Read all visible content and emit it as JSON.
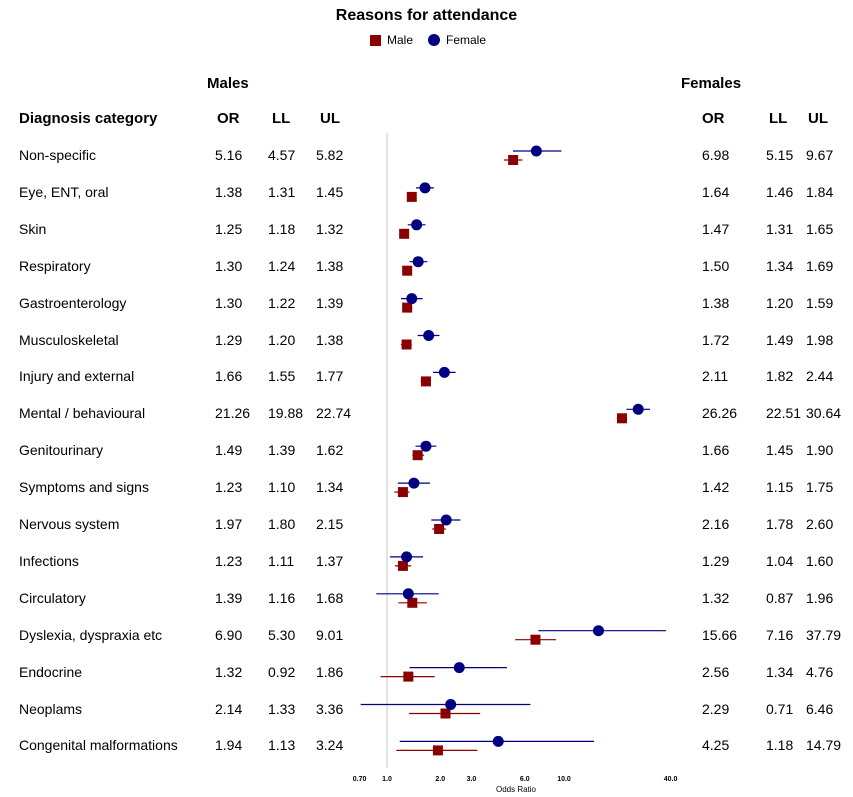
{
  "chart_data": {
    "type": "forest",
    "title": "Reasons for attendance",
    "legend": {
      "placement": "top-center",
      "items": [
        {
          "name": "Male",
          "color": "#8b0000",
          "marker": "square"
        },
        {
          "name": "Female",
          "color": "#000080",
          "marker": "circle"
        }
      ]
    },
    "group_headers": {
      "males": "Males",
      "females": "Females"
    },
    "column_headers": {
      "category": "Diagnosis category",
      "or": "OR",
      "ll": "LL",
      "ul": "UL"
    },
    "xlabel": "Odds Ratio",
    "x_scale": "log",
    "xlim": [
      0.7,
      40
    ],
    "x_ticks": [
      "0.70",
      "1.0",
      "2.0",
      "3.0",
      "6.0",
      "10.0",
      "40.0"
    ],
    "x_tick_values": [
      0.7,
      1.0,
      2.0,
      3.0,
      6.0,
      10.0,
      40.0
    ],
    "reference_line": 1.0,
    "categories": [
      "Non-specific",
      "Eye, ENT, oral",
      "Skin",
      "Respiratory",
      "Gastroenterology",
      "Musculoskeletal",
      "Injury and external",
      "Mental / behavioural",
      "Genitourinary",
      "Symptoms and signs",
      "Nervous system",
      "Infections",
      "Circulatory",
      "Dyslexia, dyspraxia etc",
      "Endocrine",
      "Neoplams",
      "Congenital malformations"
    ],
    "series": [
      {
        "name": "Male",
        "or": [
          "5.16",
          "1.38",
          "1.25",
          "1.30",
          "1.30",
          "1.29",
          "1.66",
          "21.26",
          "1.49",
          "1.23",
          "1.97",
          "1.23",
          "1.39",
          "6.90",
          "1.32",
          "2.14",
          "1.94"
        ],
        "ll": [
          "4.57",
          "1.31",
          "1.18",
          "1.24",
          "1.22",
          "1.20",
          "1.55",
          "19.88",
          "1.39",
          "1.10",
          "1.80",
          "1.11",
          "1.16",
          "5.30",
          "0.92",
          "1.33",
          "1.13"
        ],
        "ul": [
          "5.82",
          "1.45",
          "1.32",
          "1.38",
          "1.39",
          "1.38",
          "1.77",
          "22.74",
          "1.62",
          "1.34",
          "2.15",
          "1.37",
          "1.68",
          "9.01",
          "1.86",
          "3.36",
          "3.24"
        ]
      },
      {
        "name": "Female",
        "or": [
          "6.98",
          "1.64",
          "1.47",
          "1.50",
          "1.38",
          "1.72",
          "2.11",
          "26.26",
          "1.66",
          "1.42",
          "2.16",
          "1.29",
          "1.32",
          "15.66",
          "2.56",
          "2.29",
          "4.25"
        ],
        "ll": [
          "5.15",
          "1.46",
          "1.31",
          "1.34",
          "1.20",
          "1.49",
          "1.82",
          "22.51",
          "1.45",
          "1.15",
          "1.78",
          "1.04",
          "0.87",
          "7.16",
          "1.34",
          "0.71",
          "1.18"
        ],
        "ul": [
          "9.67",
          "1.84",
          "1.65",
          "1.69",
          "1.59",
          "1.98",
          "2.44",
          "30.64",
          "1.90",
          "1.75",
          "2.60",
          "1.60",
          "1.96",
          "37.79",
          "4.76",
          "6.46",
          "14.79"
        ]
      }
    ]
  }
}
